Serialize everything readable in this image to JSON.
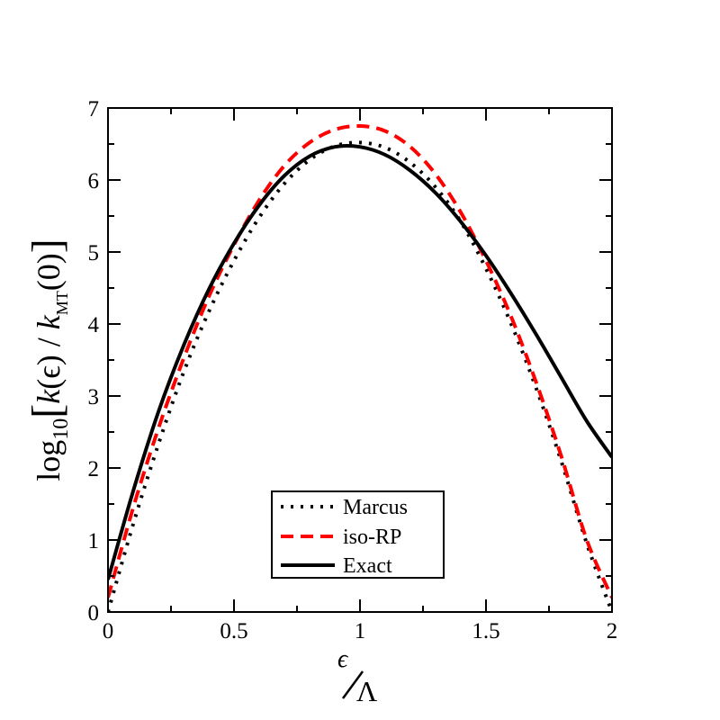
{
  "chart_data": {
    "type": "line",
    "title": "",
    "xlabel": {
      "main": "ϵ",
      "denominator": "Λ"
    },
    "ylabel": {
      "log": "log",
      "log_sub": "10",
      "open_bracket": "[",
      "k_eps": "k",
      "eps_arg": "(ϵ)",
      "slash": " / ",
      "k_mt": "k",
      "mt_sub": "MT",
      "zero_arg": "(0)",
      "close_bracket": "]"
    },
    "xlim": [
      0,
      2
    ],
    "ylim": [
      0,
      7
    ],
    "x_ticks": [
      {
        "value": 0,
        "label": "0"
      },
      {
        "value": 0.5,
        "label": "0.5"
      },
      {
        "value": 1,
        "label": "1"
      },
      {
        "value": 1.5,
        "label": "1.5"
      },
      {
        "value": 2,
        "label": "2"
      }
    ],
    "y_ticks": [
      {
        "value": 0,
        "label": "0"
      },
      {
        "value": 1,
        "label": "1"
      },
      {
        "value": 2,
        "label": "2"
      },
      {
        "value": 3,
        "label": "3"
      },
      {
        "value": 4,
        "label": "4"
      },
      {
        "value": 5,
        "label": "5"
      },
      {
        "value": 6,
        "label": "6"
      },
      {
        "value": 7,
        "label": "7"
      }
    ],
    "legend_position": "bottom-center",
    "series": [
      {
        "name": "Marcus",
        "color": "#000000",
        "style": "dotted",
        "x": [
          0.0,
          0.1,
          0.2,
          0.3,
          0.4,
          0.5,
          0.6,
          0.7,
          0.8,
          0.9,
          1.0,
          1.1,
          1.2,
          1.3,
          1.4,
          1.5,
          1.6,
          1.7,
          1.8,
          1.9,
          2.0
        ],
        "y": [
          0.0,
          1.22,
          2.33,
          3.33,
          4.17,
          4.88,
          5.48,
          5.95,
          6.28,
          6.47,
          6.52,
          6.45,
          6.24,
          5.9,
          5.42,
          4.77,
          4.0,
          3.1,
          2.08,
          0.95,
          0.0
        ]
      },
      {
        "name": "iso-RP",
        "color": "#ff0000",
        "style": "dashed",
        "x": [
          0.0,
          0.1,
          0.2,
          0.3,
          0.4,
          0.5,
          0.6,
          0.7,
          0.8,
          0.9,
          1.0,
          1.1,
          1.2,
          1.3,
          1.4,
          1.5,
          1.6,
          1.7,
          1.8,
          1.9,
          2.0
        ],
        "y": [
          0.2,
          1.45,
          2.55,
          3.52,
          4.38,
          5.1,
          5.72,
          6.2,
          6.52,
          6.7,
          6.75,
          6.68,
          6.46,
          6.08,
          5.55,
          4.88,
          4.1,
          3.18,
          2.15,
          1.0,
          0.2
        ]
      },
      {
        "name": "Exact",
        "color": "#000000",
        "style": "solid",
        "x": [
          0.0,
          0.1,
          0.2,
          0.3,
          0.4,
          0.5,
          0.6,
          0.7,
          0.8,
          0.9,
          1.0,
          1.1,
          1.2,
          1.3,
          1.4,
          1.5,
          1.6,
          1.7,
          1.8,
          1.9,
          2.0
        ],
        "y": [
          0.45,
          1.68,
          2.78,
          3.7,
          4.48,
          5.12,
          5.65,
          6.06,
          6.33,
          6.46,
          6.46,
          6.35,
          6.13,
          5.82,
          5.42,
          4.95,
          4.42,
          3.85,
          3.25,
          2.65,
          2.15
        ]
      }
    ]
  }
}
